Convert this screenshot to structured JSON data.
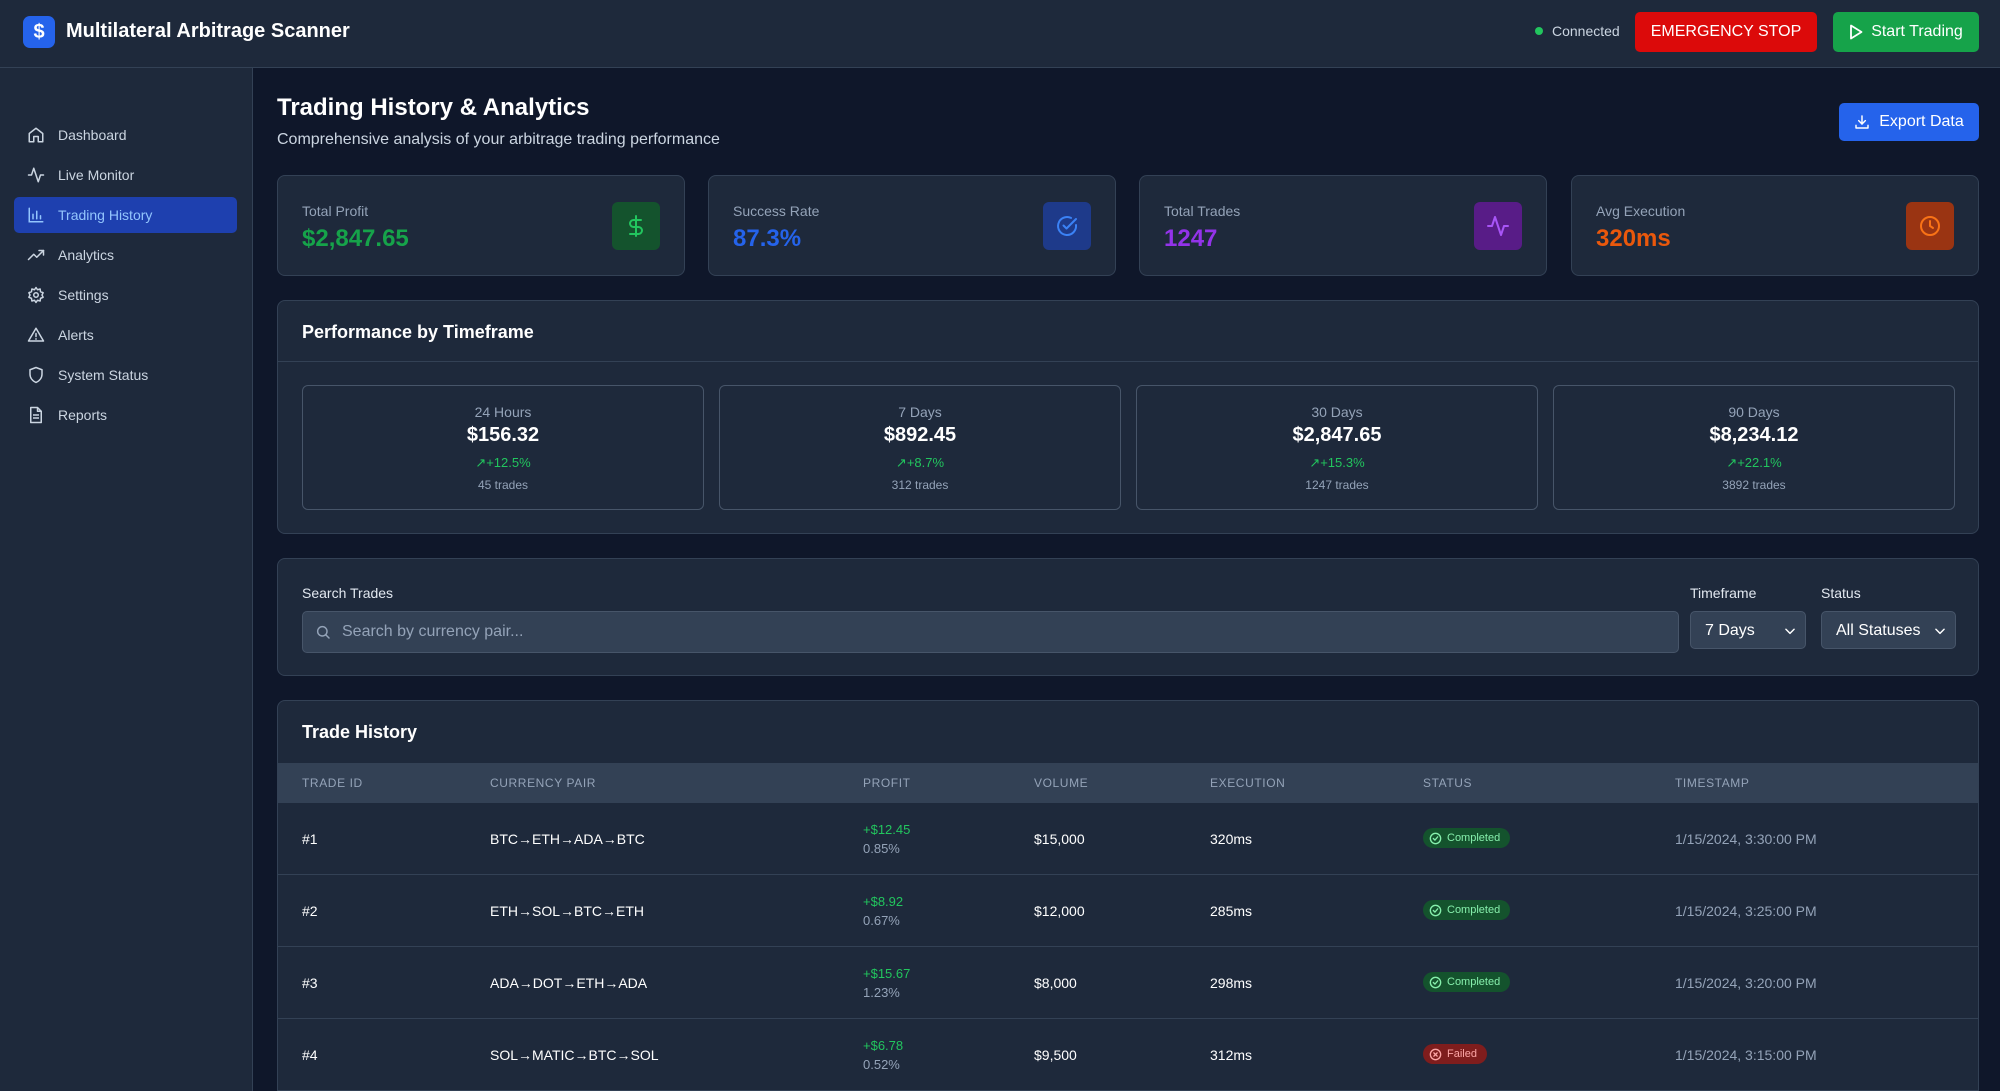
{
  "app": {
    "logo_glyph": "$",
    "title": "Multilateral Arbitrage Scanner",
    "connection_status": "Connected",
    "emergency_label": "EMERGENCY STOP",
    "start_label": "Start Trading"
  },
  "sidebar": {
    "items": [
      {
        "label": "Dashboard",
        "icon": "home-icon"
      },
      {
        "label": "Live Monitor",
        "icon": "activity-icon"
      },
      {
        "label": "Trading History",
        "icon": "bar-chart-icon",
        "active": true
      },
      {
        "label": "Analytics",
        "icon": "trending-up-icon"
      },
      {
        "label": "Settings",
        "icon": "gear-icon"
      },
      {
        "label": "Alerts",
        "icon": "warning-icon"
      },
      {
        "label": "System Status",
        "icon": "shield-icon"
      },
      {
        "label": "Reports",
        "icon": "document-icon"
      }
    ]
  },
  "page": {
    "title": "Trading History & Analytics",
    "subtitle": "Comprehensive analysis of your arbitrage trading performance",
    "export_label": "Export Data"
  },
  "stats": [
    {
      "label": "Total Profit",
      "value": "$2,847.65",
      "color": "#16a34a",
      "icon": "dollar-icon"
    },
    {
      "label": "Success Rate",
      "value": "87.3%",
      "color": "#2563eb",
      "icon": "check-circle-icon"
    },
    {
      "label": "Total Trades",
      "value": "1247",
      "color": "#9333ea",
      "icon": "activity-icon"
    },
    {
      "label": "Avg Execution",
      "value": "320ms",
      "color": "#ea580c",
      "icon": "clock-icon"
    }
  ],
  "performance": {
    "title": "Performance by Timeframe",
    "timeframes": [
      {
        "label": "24 Hours",
        "value": "$156.32",
        "change": "+12.5%",
        "trades": "45 trades"
      },
      {
        "label": "7 Days",
        "value": "$892.45",
        "change": "+8.7%",
        "trades": "312 trades"
      },
      {
        "label": "30 Days",
        "value": "$2,847.65",
        "change": "+15.3%",
        "trades": "1247 trades"
      },
      {
        "label": "90 Days",
        "value": "$8,234.12",
        "change": "+22.1%",
        "trades": "3892 trades"
      }
    ]
  },
  "filters": {
    "search_label": "Search Trades",
    "search_placeholder": "Search by currency pair...",
    "timeframe_label": "Timeframe",
    "timeframe_value": "7 Days",
    "status_label": "Status",
    "status_value": "All Statuses"
  },
  "history": {
    "title": "Trade History",
    "columns": [
      "TRADE ID",
      "CURRENCY PAIR",
      "PROFIT",
      "VOLUME",
      "EXECUTION",
      "STATUS",
      "TIMESTAMP"
    ],
    "rows": [
      {
        "id": "#1",
        "pair": "BTC→ETH→ADA→BTC",
        "profit": "+$12.45",
        "pct": "0.85%",
        "volume": "$15,000",
        "execution": "320ms",
        "status": "Completed",
        "timestamp": "1/15/2024, 3:30:00 PM"
      },
      {
        "id": "#2",
        "pair": "ETH→SOL→BTC→ETH",
        "profit": "+$8.92",
        "pct": "0.67%",
        "volume": "$12,000",
        "execution": "285ms",
        "status": "Completed",
        "timestamp": "1/15/2024, 3:25:00 PM"
      },
      {
        "id": "#3",
        "pair": "ADA→DOT→ETH→ADA",
        "profit": "+$15.67",
        "pct": "1.23%",
        "volume": "$8,000",
        "execution": "298ms",
        "status": "Completed",
        "timestamp": "1/15/2024, 3:20:00 PM"
      },
      {
        "id": "#4",
        "pair": "SOL→MATIC→BTC→SOL",
        "profit": "+$6.78",
        "pct": "0.52%",
        "volume": "$9,500",
        "execution": "312ms",
        "status": "Failed",
        "timestamp": "1/15/2024, 3:15:00 PM"
      }
    ]
  }
}
